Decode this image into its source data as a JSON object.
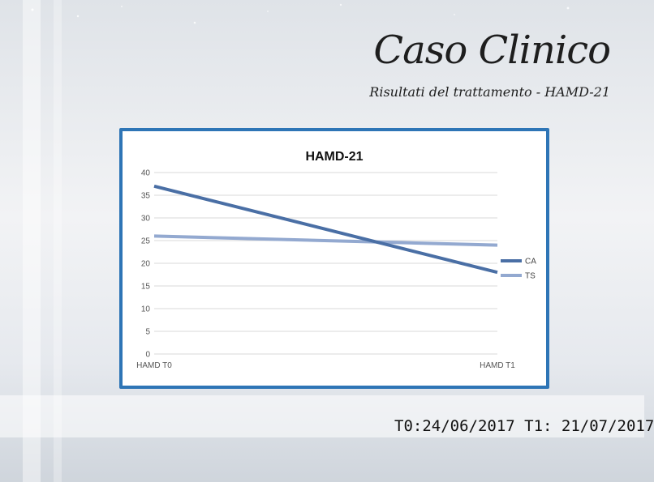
{
  "slide": {
    "title": "Caso Clinico",
    "subtitle": "Risultati del trattamento - HAMD-21",
    "footer": "T0:24/06/2017 T1: 21/07/2017"
  },
  "colors": {
    "frame": "#2e75b6",
    "series_ca": "#4a6fa5",
    "series_ts": "#93a9d0",
    "grid": "#d9d9d9"
  },
  "chart_data": {
    "type": "line",
    "title": "HAMD-21",
    "xlabel": "",
    "ylabel": "",
    "categories": [
      "HAMD T0",
      "HAMD T1"
    ],
    "ylim": [
      0,
      40
    ],
    "yticks": [
      0,
      5,
      10,
      15,
      20,
      25,
      30,
      35,
      40
    ],
    "grid": true,
    "legend_position": "right",
    "series": [
      {
        "name": "CA",
        "values": [
          37,
          18
        ]
      },
      {
        "name": "TS",
        "values": [
          26,
          24
        ]
      }
    ]
  }
}
